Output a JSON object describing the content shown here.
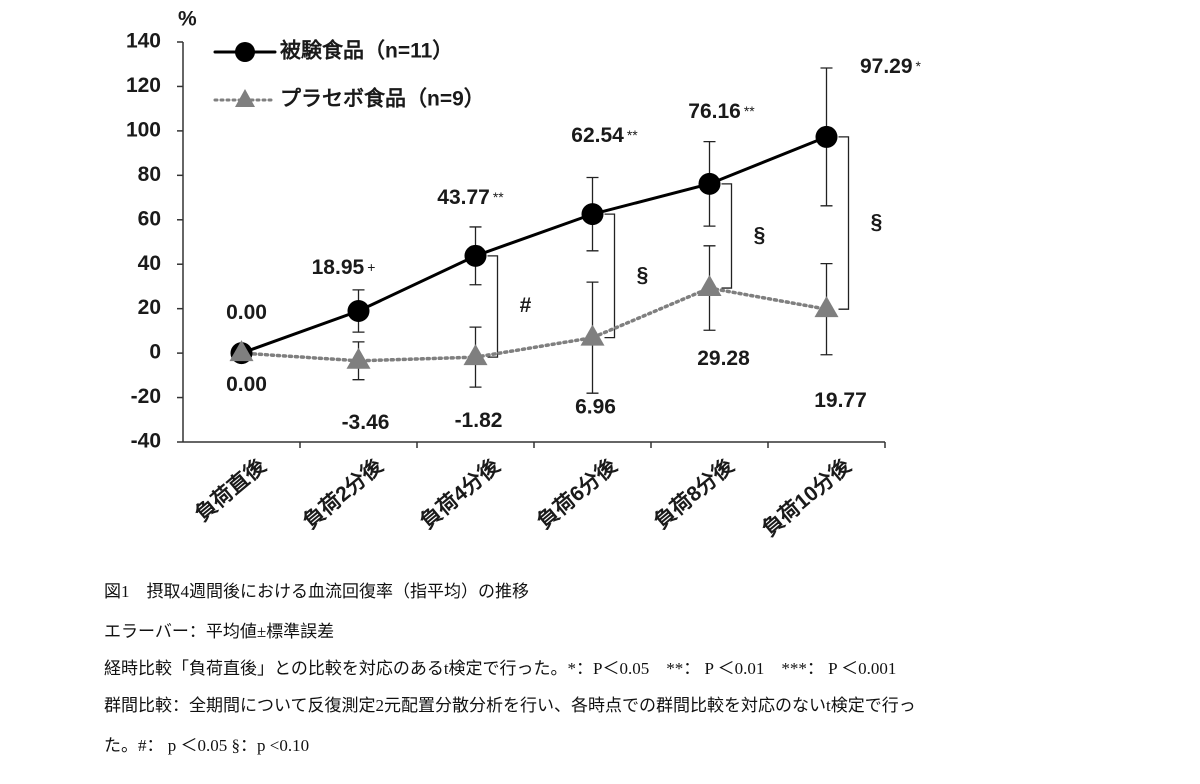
{
  "chart_data": {
    "type": "line",
    "y_axis_label": "%",
    "categories": [
      "負荷直後",
      "負荷2分後",
      "負荷4分後",
      "負荷6分後",
      "負荷8分後",
      "負荷10分後"
    ],
    "ylim": [
      -40,
      140
    ],
    "yticks": [
      -40,
      -20,
      0,
      20,
      40,
      60,
      80,
      100,
      120,
      140
    ],
    "series": [
      {
        "name": "被験食品（n=11）",
        "color": "#000000",
        "marker": "circle",
        "line_style": "solid",
        "values": [
          0,
          18.95,
          43.77,
          62.54,
          76.16,
          97.29
        ],
        "errors": [
          0,
          9.5,
          13,
          16.5,
          19,
          31
        ],
        "value_labels": [
          "0.00",
          "18.95",
          "43.77",
          "62.54",
          "76.16",
          "97.29"
        ],
        "significance": [
          null,
          "+",
          "**",
          "**",
          "**",
          "*"
        ]
      },
      {
        "name": "プラセボ食品（n=9）",
        "color": "#7f7f7f",
        "marker": "triangle",
        "line_style": "dotted",
        "values": [
          0,
          -3.46,
          -1.82,
          6.96,
          29.28,
          19.77
        ],
        "errors": [
          0,
          8.5,
          13.5,
          25,
          19,
          20.5
        ],
        "value_labels": [
          "0.00",
          "-3.46",
          "-1.82",
          "6.96",
          "29.28",
          "19.77"
        ]
      }
    ],
    "group_comparisons": [
      null,
      null,
      "#",
      "§",
      "§",
      "§"
    ]
  },
  "caption": [
    "図1　摂取4週間後における血流回復率（指平均）の推移",
    "エラーバー：平均値±標準誤差",
    "経時比較「負荷直後」との比較を対応のあるt検定で行った。*：P＜0.05　**：  P ＜0.01　***：  P ＜0.001",
    "群間比較：全期間について反復測定2元配置分散分析を行い、各時点での群間比較を対応のないt検定で行っ",
    "た。#：  p ＜0.05 §：p <0.10"
  ]
}
